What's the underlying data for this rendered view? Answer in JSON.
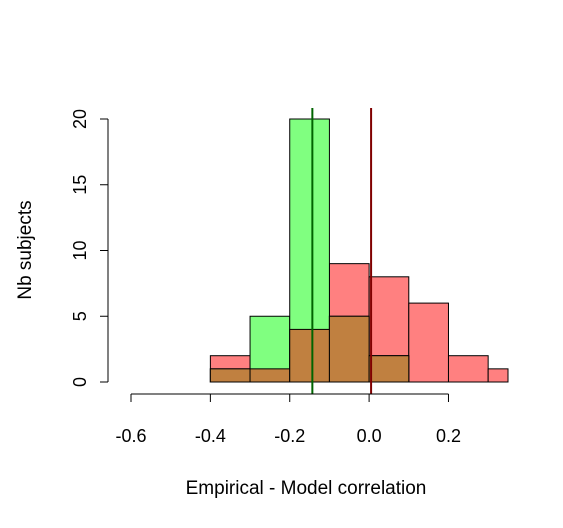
{
  "chart_data": {
    "type": "bar",
    "title": "",
    "xlabel": "Empirical - Model correlation",
    "ylabel": "Nb subjects",
    "xlim": [
      -0.7,
      0.35
    ],
    "ylim": [
      0,
      20
    ],
    "x_ticks": [
      -0.6,
      -0.4,
      -0.2,
      0.0,
      0.2
    ],
    "x_tick_labels": [
      "-0.6",
      "-0.4",
      "-0.2",
      "0.0",
      "0.2"
    ],
    "y_ticks": [
      0,
      5,
      10,
      15,
      20
    ],
    "y_tick_labels": [
      "0",
      "5",
      "10",
      "15",
      "20"
    ],
    "bin_edges": [
      -0.4,
      -0.3,
      -0.2,
      -0.1,
      0.0,
      0.1,
      0.2,
      0.3,
      0.4
    ],
    "series": [
      {
        "color": "#ff8080",
        "counts": [
          2,
          1,
          4,
          9,
          8,
          6,
          2,
          1
        ]
      },
      {
        "color": "#80ff80",
        "counts": [
          1,
          5,
          20,
          5,
          2,
          0,
          0,
          0
        ]
      }
    ],
    "overlap_color": "#c08040",
    "vlines": [
      {
        "x": -0.143,
        "color": "#006400"
      },
      {
        "x": 0.005,
        "color": "#800000"
      }
    ],
    "grid": false,
    "legend": "none"
  }
}
